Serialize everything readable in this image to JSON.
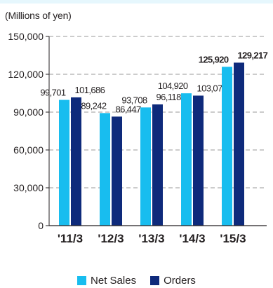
{
  "chart_data": {
    "type": "bar",
    "unit_label": "(Millions of yen)",
    "categories": [
      "'11/3",
      "'12/3",
      "'13/3",
      "'14/3",
      "'15/3"
    ],
    "series": [
      {
        "name": "Net Sales",
        "color": "#18bdef",
        "values": [
          99701,
          89242,
          93708,
          104920,
          125920
        ],
        "labels": [
          "99,701",
          "89,242",
          "93,708",
          "104,920",
          "125,920"
        ]
      },
      {
        "name": "Orders",
        "color": "#0e2a7b",
        "values": [
          101686,
          86447,
          96118,
          103077,
          129217
        ],
        "labels": [
          "101,686",
          "86,447",
          "96,118",
          "103,077",
          "129,217"
        ]
      }
    ],
    "bold_category_labels": [
      "'15/3"
    ],
    "yticks": [
      0,
      30000,
      60000,
      90000,
      120000,
      150000
    ],
    "ytick_labels": [
      "0",
      "30,000",
      "60,000",
      "90,000",
      "120,000",
      "150,000"
    ],
    "ylim": [
      0,
      150000
    ],
    "grid": "dashed horizontal",
    "legend_position": "bottom-center"
  }
}
